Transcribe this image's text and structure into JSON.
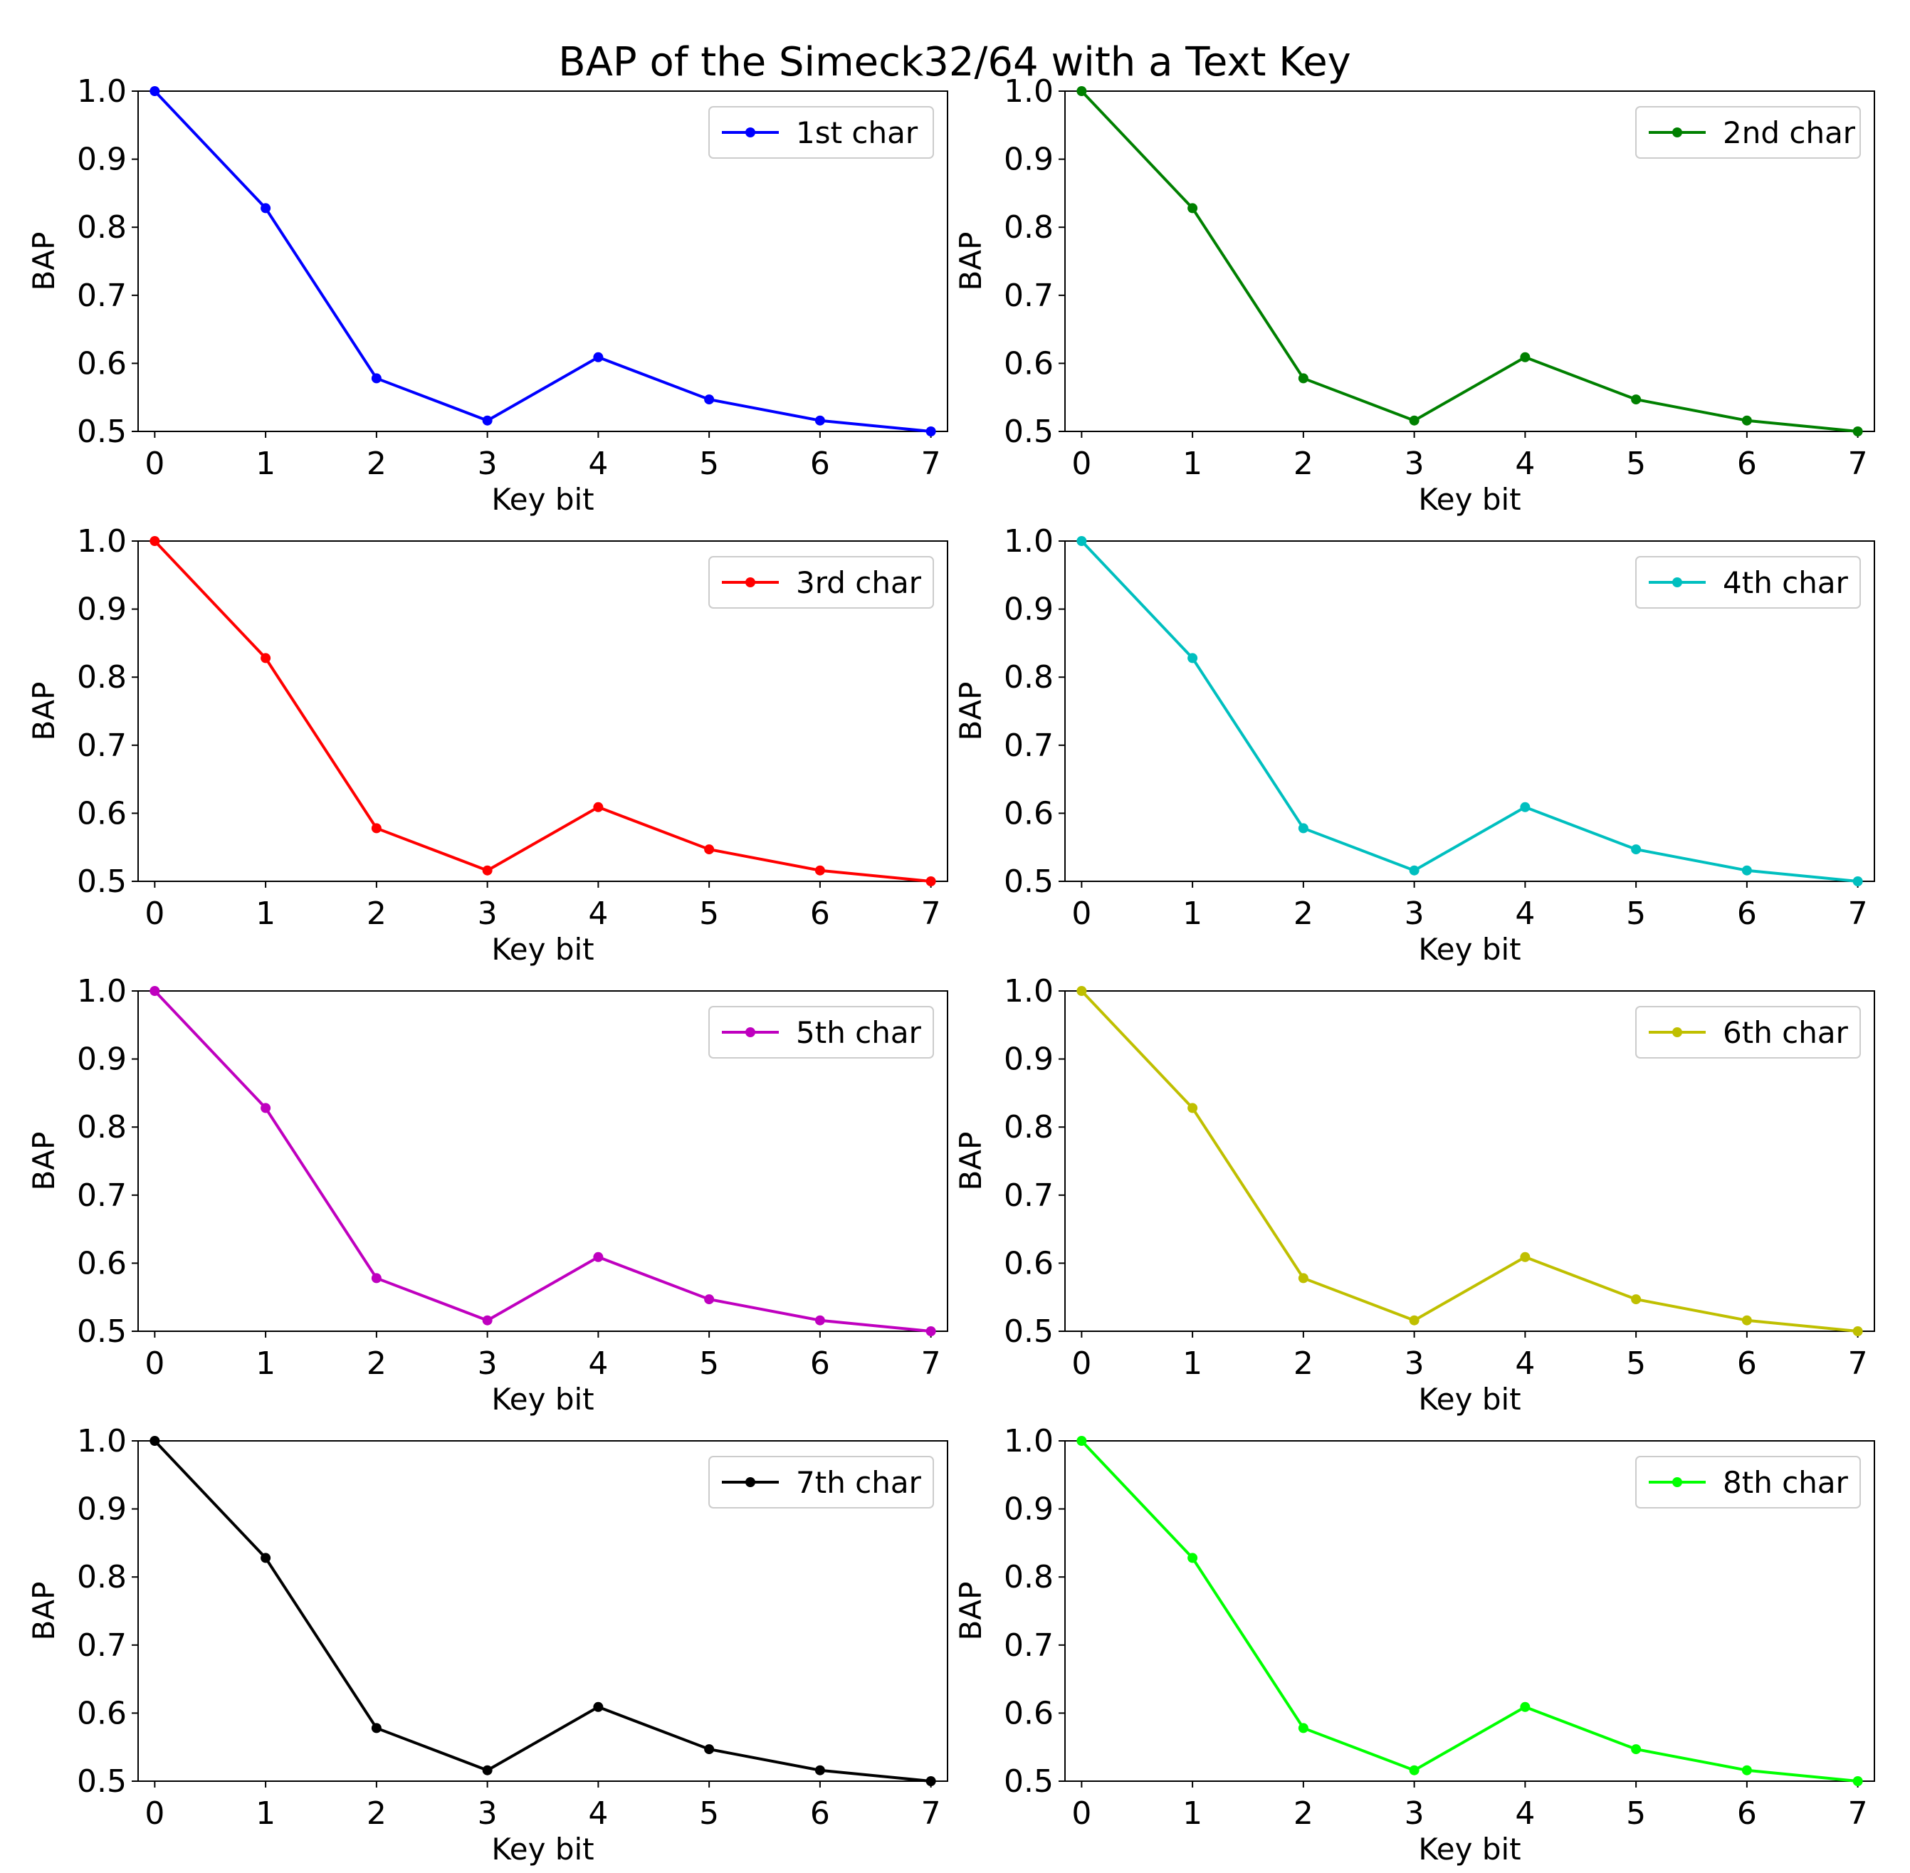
{
  "suptitle": "BAP of the Simeck32/64 with a Text Key",
  "chart_data": [
    {
      "type": "line",
      "xlabel": "Key bit",
      "ylabel": "BAP",
      "xlim": [
        -0.15,
        7.15
      ],
      "ylim": [
        0.5,
        1.0
      ],
      "x": [
        0,
        1,
        2,
        3,
        4,
        5,
        6,
        7
      ],
      "xticks": [
        "0",
        "1",
        "2",
        "3",
        "4",
        "5",
        "6",
        "7"
      ],
      "yticks": [
        "0.5",
        "0.6",
        "0.7",
        "0.8",
        "0.9",
        "1.0"
      ],
      "legend_position": "top-right",
      "grid": false,
      "series": [
        {
          "name": "1st char",
          "color": "#0000ff",
          "values": [
            1.0,
            0.828,
            0.578,
            0.516,
            0.609,
            0.547,
            0.516,
            0.5
          ]
        }
      ]
    },
    {
      "type": "line",
      "xlabel": "Key bit",
      "ylabel": "BAP",
      "xlim": [
        -0.15,
        7.15
      ],
      "ylim": [
        0.5,
        1.0
      ],
      "x": [
        0,
        1,
        2,
        3,
        4,
        5,
        6,
        7
      ],
      "xticks": [
        "0",
        "1",
        "2",
        "3",
        "4",
        "5",
        "6",
        "7"
      ],
      "yticks": [
        "0.5",
        "0.6",
        "0.7",
        "0.8",
        "0.9",
        "1.0"
      ],
      "legend_position": "top-right",
      "grid": false,
      "series": [
        {
          "name": "2nd char",
          "color": "#008000",
          "values": [
            1.0,
            0.828,
            0.578,
            0.516,
            0.609,
            0.547,
            0.516,
            0.5
          ]
        }
      ]
    },
    {
      "type": "line",
      "xlabel": "Key bit",
      "ylabel": "BAP",
      "xlim": [
        -0.15,
        7.15
      ],
      "ylim": [
        0.5,
        1.0
      ],
      "x": [
        0,
        1,
        2,
        3,
        4,
        5,
        6,
        7
      ],
      "xticks": [
        "0",
        "1",
        "2",
        "3",
        "4",
        "5",
        "6",
        "7"
      ],
      "yticks": [
        "0.5",
        "0.6",
        "0.7",
        "0.8",
        "0.9",
        "1.0"
      ],
      "legend_position": "top-right",
      "grid": false,
      "series": [
        {
          "name": "3rd char",
          "color": "#ff0000",
          "values": [
            1.0,
            0.828,
            0.578,
            0.516,
            0.609,
            0.547,
            0.516,
            0.5
          ]
        }
      ]
    },
    {
      "type": "line",
      "xlabel": "Key bit",
      "ylabel": "BAP",
      "xlim": [
        -0.15,
        7.15
      ],
      "ylim": [
        0.5,
        1.0
      ],
      "x": [
        0,
        1,
        2,
        3,
        4,
        5,
        6,
        7
      ],
      "xticks": [
        "0",
        "1",
        "2",
        "3",
        "4",
        "5",
        "6",
        "7"
      ],
      "yticks": [
        "0.5",
        "0.6",
        "0.7",
        "0.8",
        "0.9",
        "1.0"
      ],
      "legend_position": "top-right",
      "grid": false,
      "series": [
        {
          "name": "4th char",
          "color": "#00bfbf",
          "values": [
            1.0,
            0.828,
            0.578,
            0.516,
            0.609,
            0.547,
            0.516,
            0.5
          ]
        }
      ]
    },
    {
      "type": "line",
      "xlabel": "Key bit",
      "ylabel": "BAP",
      "xlim": [
        -0.15,
        7.15
      ],
      "ylim": [
        0.5,
        1.0
      ],
      "x": [
        0,
        1,
        2,
        3,
        4,
        5,
        6,
        7
      ],
      "xticks": [
        "0",
        "1",
        "2",
        "3",
        "4",
        "5",
        "6",
        "7"
      ],
      "yticks": [
        "0.5",
        "0.6",
        "0.7",
        "0.8",
        "0.9",
        "1.0"
      ],
      "legend_position": "top-right",
      "grid": false,
      "series": [
        {
          "name": "5th char",
          "color": "#bf00bf",
          "values": [
            1.0,
            0.828,
            0.578,
            0.516,
            0.609,
            0.547,
            0.516,
            0.5
          ]
        }
      ]
    },
    {
      "type": "line",
      "xlabel": "Key bit",
      "ylabel": "BAP",
      "xlim": [
        -0.15,
        7.15
      ],
      "ylim": [
        0.5,
        1.0
      ],
      "x": [
        0,
        1,
        2,
        3,
        4,
        5,
        6,
        7
      ],
      "xticks": [
        "0",
        "1",
        "2",
        "3",
        "4",
        "5",
        "6",
        "7"
      ],
      "yticks": [
        "0.5",
        "0.6",
        "0.7",
        "0.8",
        "0.9",
        "1.0"
      ],
      "legend_position": "top-right",
      "grid": false,
      "series": [
        {
          "name": "6th char",
          "color": "#bfbf00",
          "values": [
            1.0,
            0.828,
            0.578,
            0.516,
            0.609,
            0.547,
            0.516,
            0.5
          ]
        }
      ]
    },
    {
      "type": "line",
      "xlabel": "Key bit",
      "ylabel": "BAP",
      "xlim": [
        -0.15,
        7.15
      ],
      "ylim": [
        0.5,
        1.0
      ],
      "x": [
        0,
        1,
        2,
        3,
        4,
        5,
        6,
        7
      ],
      "xticks": [
        "0",
        "1",
        "2",
        "3",
        "4",
        "5",
        "6",
        "7"
      ],
      "yticks": [
        "0.5",
        "0.6",
        "0.7",
        "0.8",
        "0.9",
        "1.0"
      ],
      "legend_position": "top-right",
      "grid": false,
      "series": [
        {
          "name": "7th char",
          "color": "#000000",
          "values": [
            1.0,
            0.828,
            0.578,
            0.516,
            0.609,
            0.547,
            0.516,
            0.5
          ]
        }
      ]
    },
    {
      "type": "line",
      "xlabel": "Key bit",
      "ylabel": "BAP",
      "xlim": [
        -0.15,
        7.15
      ],
      "ylim": [
        0.5,
        1.0
      ],
      "x": [
        0,
        1,
        2,
        3,
        4,
        5,
        6,
        7
      ],
      "xticks": [
        "0",
        "1",
        "2",
        "3",
        "4",
        "5",
        "6",
        "7"
      ],
      "yticks": [
        "0.5",
        "0.6",
        "0.7",
        "0.8",
        "0.9",
        "1.0"
      ],
      "legend_position": "top-right",
      "grid": false,
      "series": [
        {
          "name": "8th char",
          "color": "#00ff00",
          "values": [
            1.0,
            0.828,
            0.578,
            0.516,
            0.609,
            0.547,
            0.516,
            0.5
          ]
        }
      ]
    }
  ]
}
